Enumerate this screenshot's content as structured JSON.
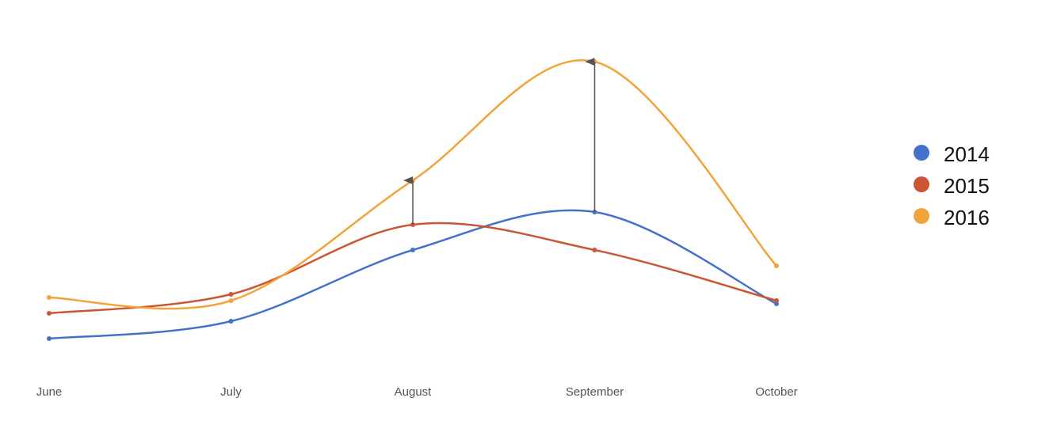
{
  "chart_data": {
    "type": "line",
    "categories": [
      "June",
      "July",
      "August",
      "September",
      "October"
    ],
    "series": [
      {
        "name": "2014",
        "color": "#4472ca",
        "values": [
          8,
          13.5,
          36,
          48,
          19
        ]
      },
      {
        "name": "2015",
        "color": "#cc5533",
        "values": [
          16,
          22,
          44,
          36,
          20
        ]
      },
      {
        "name": "2016",
        "color": "#f2a33a",
        "values": [
          21,
          20,
          58,
          95.5,
          31
        ]
      }
    ],
    "ylim": [
      0,
      100
    ],
    "curve": "smooth",
    "arrows": [
      {
        "series": [
          1,
          2
        ],
        "category": 2
      },
      {
        "series": [
          0,
          2
        ],
        "category": 3
      }
    ],
    "legend": "right"
  }
}
